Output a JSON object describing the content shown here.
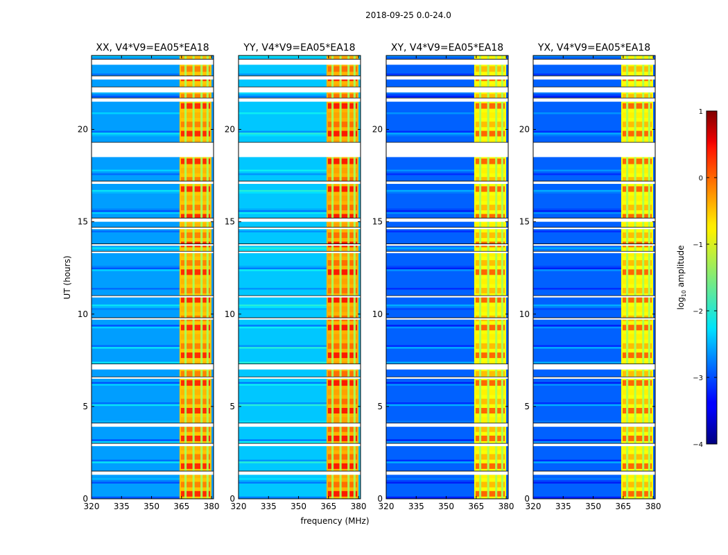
{
  "title": "2018-09-25 0.0-24.0",
  "chart_data": {
    "type": "heatmap",
    "title": "2018-09-25 0.0-24.0",
    "xlabel": "frequency (MHz)",
    "ylabel": "UT (hours)",
    "xlim": [
      320,
      381
    ],
    "ylim": [
      0,
      24
    ],
    "xticks": [
      "320",
      "335",
      "350",
      "365",
      "380"
    ],
    "xtick_values": [
      320,
      335,
      350,
      365,
      380
    ],
    "yticks": [
      "0",
      "5",
      "10",
      "15",
      "20"
    ],
    "ytick_values": [
      0,
      5,
      10,
      15,
      20
    ],
    "colorbar": {
      "label": "log10 amplitude",
      "label_base": "log",
      "label_sub": "10",
      "label_rest": " amplitude",
      "min": -4,
      "max": 1,
      "ticks": [
        "1",
        "0",
        "−1",
        "−2",
        "−3",
        "−4"
      ],
      "tick_values": [
        1,
        0,
        -1,
        -2,
        -3,
        -4
      ]
    },
    "panels": [
      {
        "title": "XX, V4*V9=EA05*EA18",
        "background_log_amp": -2.6,
        "band_log_amp": -0.6,
        "band_mhz": [
          364,
          380
        ]
      },
      {
        "title": "YY, V4*V9=EA05*EA18",
        "background_log_amp": -2.4,
        "band_log_amp": -0.5,
        "band_mhz": [
          364,
          380
        ]
      },
      {
        "title": "XY, V4*V9=EA05*EA18",
        "background_log_amp": -2.9,
        "band_log_amp": -0.9,
        "band_mhz": [
          364,
          380
        ]
      },
      {
        "title": "YX, V4*V9=EA05*EA18",
        "background_log_amp": -2.9,
        "band_log_amp": -0.9,
        "band_mhz": [
          364,
          380
        ]
      }
    ],
    "flagged_ut_hours": [
      [
        23.5,
        23.8
      ],
      [
        22.7,
        22.9
      ],
      [
        22.0,
        22.3
      ],
      [
        21.5,
        21.7
      ],
      [
        19.3,
        18.5
      ],
      [
        17.2,
        17.05
      ],
      [
        15.2,
        15.0
      ],
      [
        14.7,
        14.6
      ],
      [
        13.8,
        13.7
      ],
      [
        13.4,
        13.3
      ],
      [
        11.0,
        10.9
      ],
      [
        9.8,
        9.7
      ],
      [
        7.3,
        7.0
      ],
      [
        6.6,
        6.5
      ],
      [
        4.1,
        3.9
      ],
      [
        3.0,
        2.85
      ],
      [
        1.5,
        1.3
      ]
    ]
  }
}
